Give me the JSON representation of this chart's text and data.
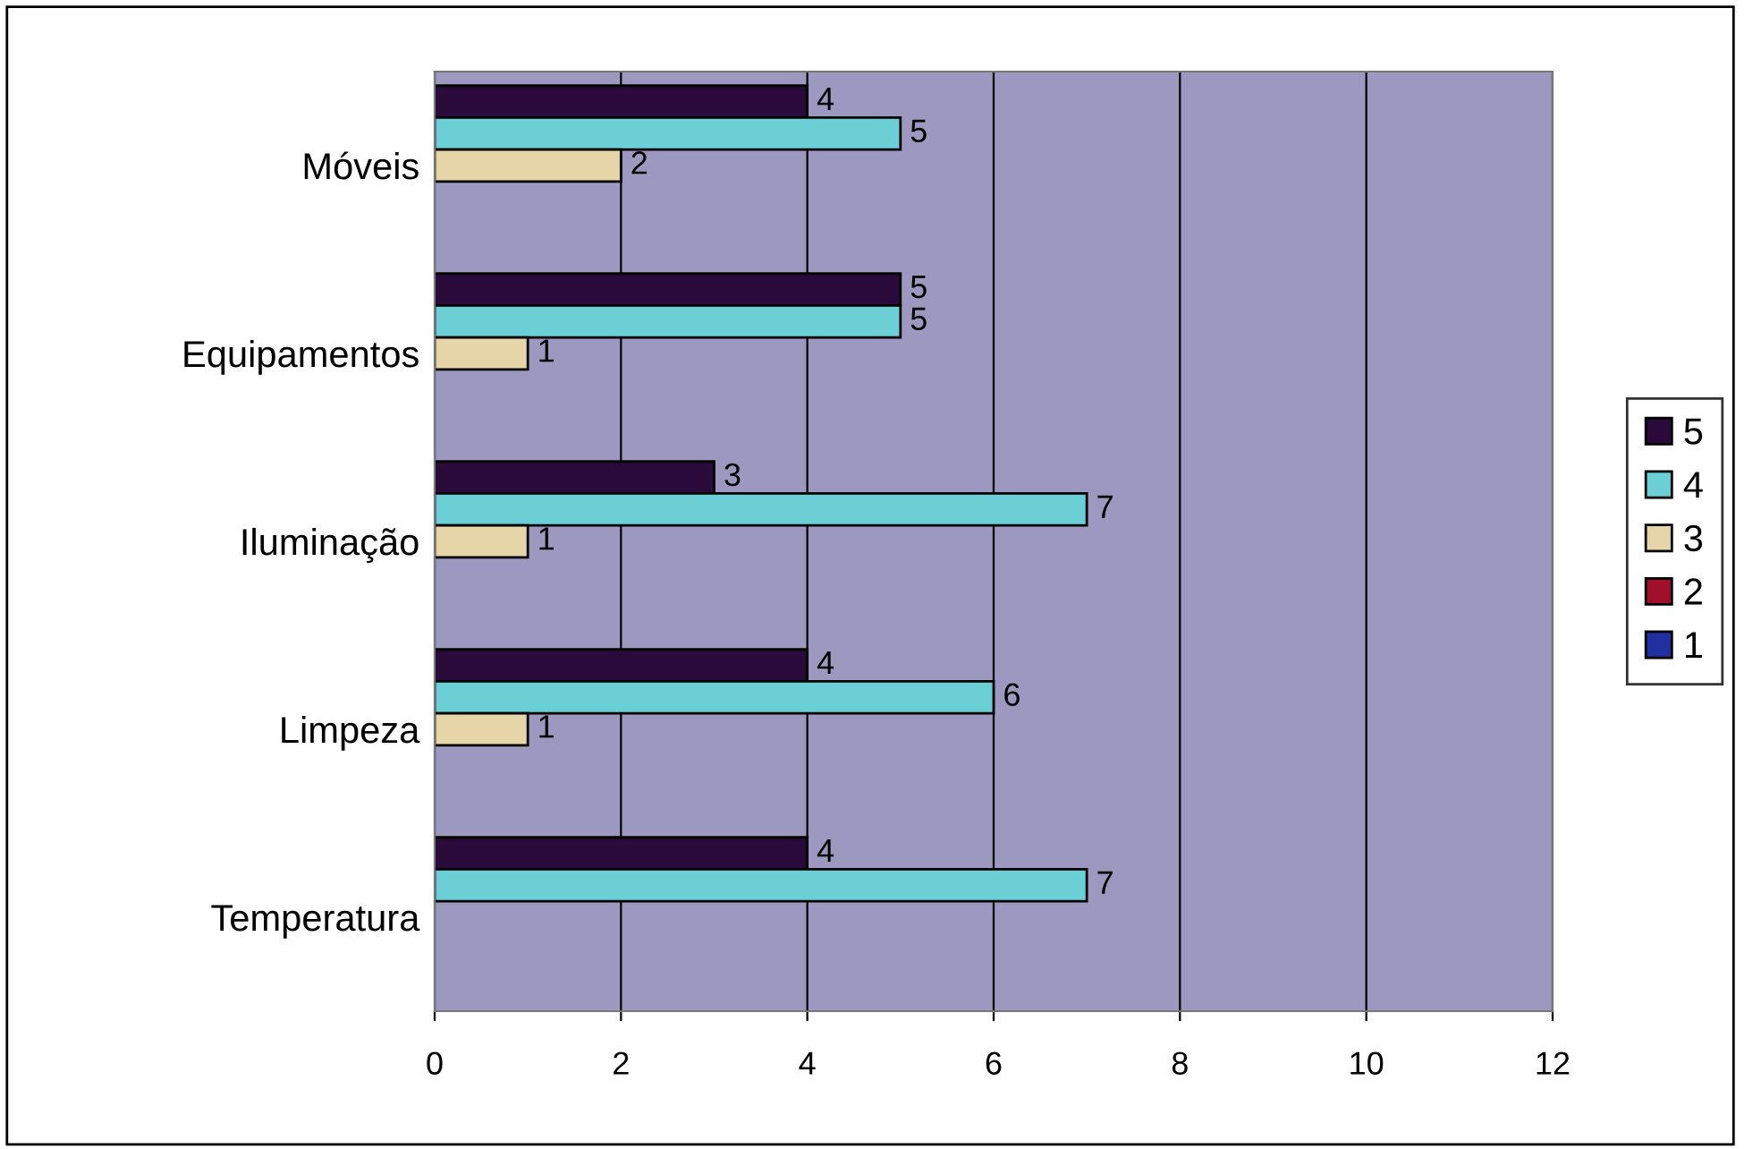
{
  "chart_data": {
    "type": "bar",
    "orientation": "horizontal",
    "categories": [
      "Móveis",
      "Equipamentos",
      "Iluminação",
      "Limpeza",
      "Temperatura"
    ],
    "series": [
      {
        "name": "5",
        "color": "#2a0a3a",
        "values": [
          4,
          5,
          3,
          4,
          4
        ]
      },
      {
        "name": "4",
        "color": "#6ccfd6",
        "values": [
          5,
          5,
          7,
          6,
          7
        ]
      },
      {
        "name": "3",
        "color": "#e6d5a8",
        "values": [
          2,
          1,
          1,
          1,
          null
        ]
      },
      {
        "name": "2",
        "color": "#a0102a",
        "values": [
          null,
          null,
          null,
          null,
          null
        ]
      },
      {
        "name": "1",
        "color": "#2030a0",
        "values": [
          null,
          null,
          null,
          null,
          null
        ]
      }
    ],
    "xlim": [
      0,
      12
    ],
    "xticks": [
      0,
      2,
      4,
      6,
      8,
      10,
      12
    ],
    "grid": "x",
    "legend": "right",
    "data_labels": true
  }
}
